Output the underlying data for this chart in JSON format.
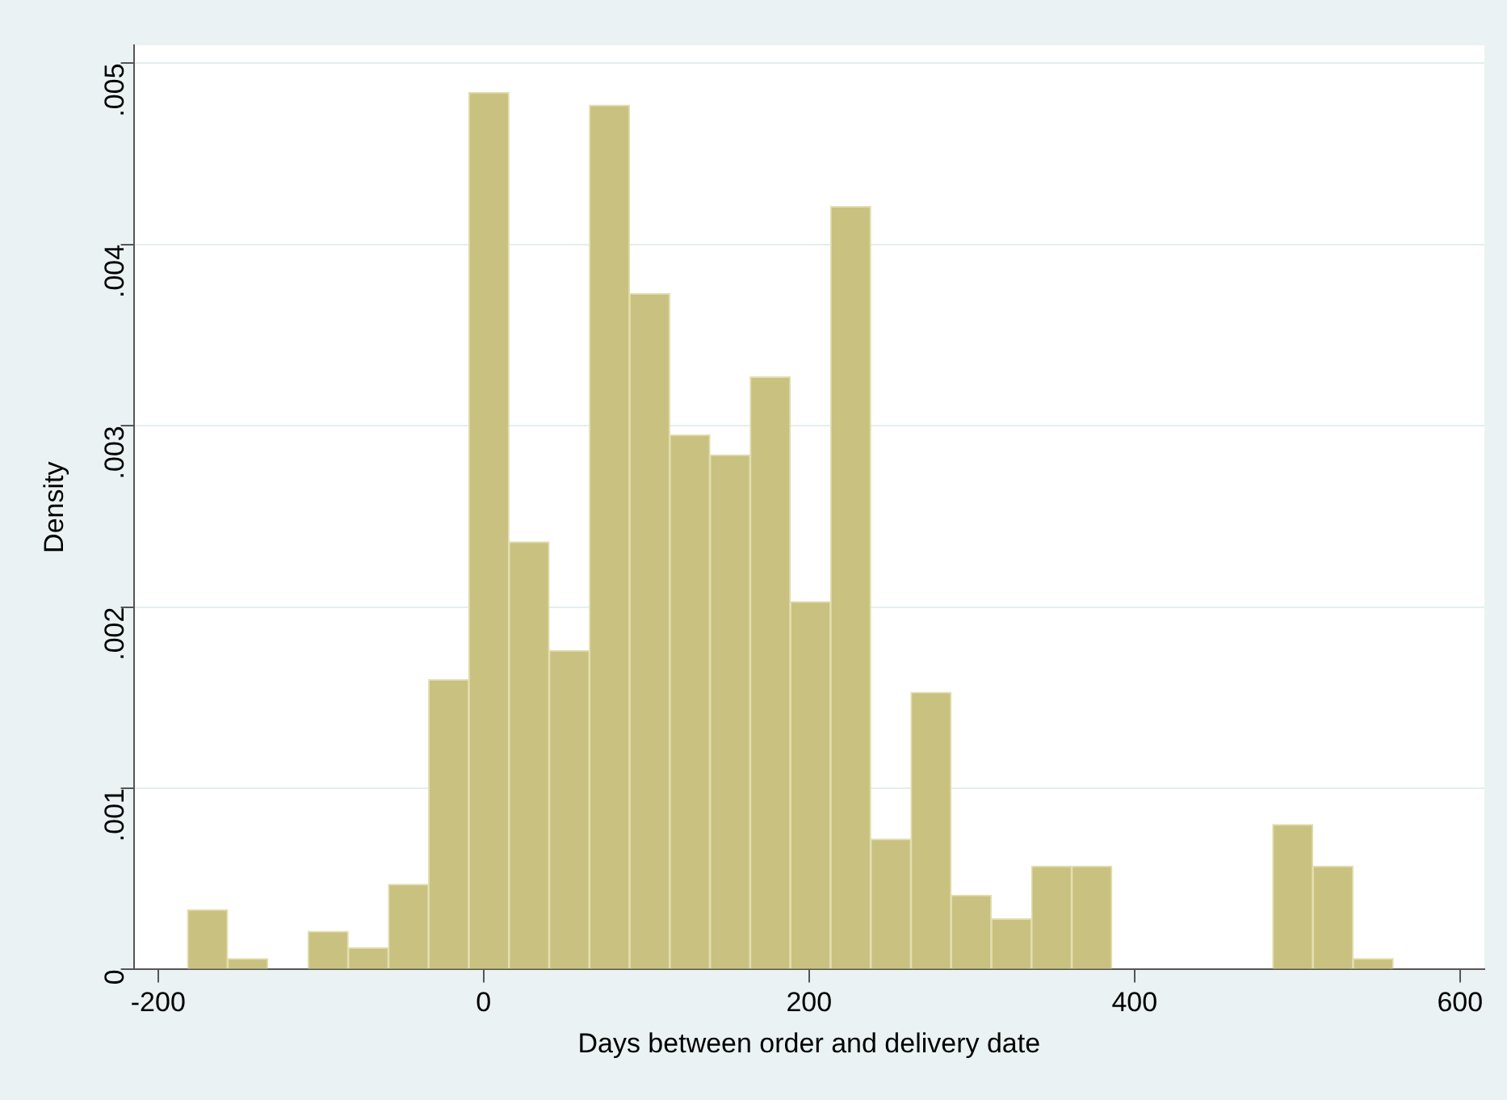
{
  "chart_data": {
    "type": "histogram",
    "xlabel": "Days between order and delivery date",
    "ylabel": "Density",
    "bins": [
      -182,
      -157.3,
      -132.6,
      -107.9,
      -83.2,
      -58.5,
      -33.8,
      -9.1,
      15.6,
      40.3,
      65,
      89.7,
      114.4,
      139.1,
      163.8,
      188.5,
      213.2,
      237.9,
      262.6,
      287.3,
      312,
      336.7,
      361.4,
      386.1,
      410.8,
      435.5,
      460.2,
      484.9,
      509.6,
      534.3,
      559
    ],
    "values": [
      0.00033,
      6e-05,
      0,
      0.00021,
      0.00012,
      0.00047,
      0.0016,
      0.00484,
      0.00236,
      0.00176,
      0.00477,
      0.00373,
      0.00295,
      0.00284,
      0.00327,
      0.00203,
      0.00421,
      0.00072,
      0.00153,
      0.00041,
      0.00028,
      0.00057,
      0.00057,
      0,
      0,
      0,
      0,
      0.0008,
      0.00057,
      6e-05
    ],
    "color": "#c9c17f",
    "xlim": [
      -215,
      615
    ],
    "xticks": [
      -200,
      0,
      200,
      400,
      600
    ],
    "ylim": [
      0,
      0.0051
    ],
    "yticks": [
      0,
      {
        "value": 0.001,
        "label": ".001"
      },
      {
        "value": 0.002,
        "label": ".002"
      },
      {
        "value": 0.003,
        "label": ".003"
      },
      {
        "value": 0.004,
        "label": ".004"
      },
      {
        "value": 0.005,
        "label": ".005"
      }
    ],
    "grid": "y",
    "legend": false
  }
}
